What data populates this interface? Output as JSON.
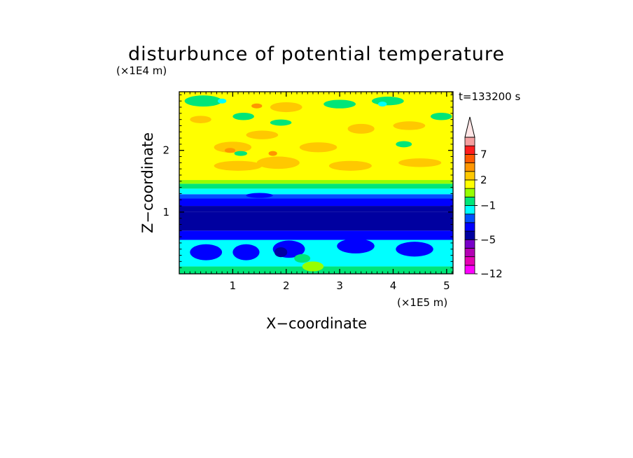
{
  "chart_data": {
    "type": "heatmap",
    "title": "disturbunce of potential temperature",
    "xlabel": "X−coordinate",
    "ylabel": "Z−coordinate",
    "x_scale_label": "(×1E5 m)",
    "y_scale_label": "(×1E4 m)",
    "time_label": "t=133200 s",
    "xlim": [
      0,
      5.12
    ],
    "ylim": [
      0,
      2.95
    ],
    "x_ticks": [
      1,
      2,
      3,
      4,
      5
    ],
    "x_tick_labels": [
      "1",
      "2",
      "3",
      "4",
      "5"
    ],
    "y_ticks": [
      1,
      2
    ],
    "y_tick_labels": [
      "1",
      "2"
    ],
    "colorbar": {
      "levels": [
        -12,
        -10,
        -8,
        -6,
        -5,
        -4,
        -3,
        -2,
        -1,
        0,
        1,
        2,
        3,
        5,
        7,
        9,
        11
      ],
      "tick_labels": [
        {
          "value": -12,
          "label": "−12"
        },
        {
          "value": -5,
          "label": "−5"
        },
        {
          "value": -1,
          "label": "−1"
        },
        {
          "value": 2,
          "label": "2"
        },
        {
          "value": 7,
          "label": "7"
        }
      ],
      "colors": [
        "#ff00ff",
        "#e600b4",
        "#b400b4",
        "#7800c8",
        "#0000a0",
        "#0000ff",
        "#0050ff",
        "#00ffff",
        "#00e678",
        "#96ff00",
        "#ffff00",
        "#ffc800",
        "#ff9600",
        "#ff5a00",
        "#ff1e1e",
        "#f5a0a0"
      ],
      "extend": "max",
      "extend_color": "#ffe6e6"
    },
    "bands": [
      {
        "z_from": 0.0,
        "z_to": 0.12,
        "value": 0,
        "color": "#00e678"
      },
      {
        "z_from": 0.12,
        "z_to": 0.55,
        "value": -2,
        "color": "#00ffff"
      },
      {
        "z_from": 0.55,
        "z_to": 0.7,
        "value": -4,
        "color": "#0000ff"
      },
      {
        "z_from": 0.7,
        "z_to": 1.0,
        "value": -5,
        "color": "#0000a0"
      },
      {
        "z_from": 1.0,
        "z_to": 1.1,
        "value": -5,
        "color": "#0000a0"
      },
      {
        "z_from": 1.1,
        "z_to": 1.22,
        "value": -4,
        "color": "#0000ff"
      },
      {
        "z_from": 1.22,
        "z_to": 1.29,
        "value": -3,
        "color": "#0050ff"
      },
      {
        "z_from": 1.29,
        "z_to": 1.38,
        "value": -2,
        "color": "#00ffff"
      },
      {
        "z_from": 1.38,
        "z_to": 1.46,
        "value": -1,
        "color": "#00e678"
      },
      {
        "z_from": 1.46,
        "z_to": 1.52,
        "value": 0,
        "color": "#96ff00"
      },
      {
        "z_from": 1.52,
        "z_to": 2.95,
        "value": 1,
        "color": "#ffff00"
      }
    ],
    "features": [
      {
        "kind": "warm",
        "x": 1.0,
        "z": 2.05,
        "rx": 0.35,
        "rz": 0.09,
        "color": "#ffc800"
      },
      {
        "kind": "warm",
        "x": 1.55,
        "z": 2.25,
        "rx": 0.3,
        "rz": 0.07,
        "color": "#ffc800"
      },
      {
        "kind": "warm",
        "x": 1.1,
        "z": 1.75,
        "rx": 0.45,
        "rz": 0.08,
        "color": "#ffc800"
      },
      {
        "kind": "warm",
        "x": 1.85,
        "z": 1.8,
        "rx": 0.4,
        "rz": 0.1,
        "color": "#ffc800"
      },
      {
        "kind": "warm",
        "x": 2.6,
        "z": 2.05,
        "rx": 0.35,
        "rz": 0.08,
        "color": "#ffc800"
      },
      {
        "kind": "warm",
        "x": 3.2,
        "z": 1.75,
        "rx": 0.4,
        "rz": 0.08,
        "color": "#ffc800"
      },
      {
        "kind": "warm",
        "x": 3.4,
        "z": 2.35,
        "rx": 0.25,
        "rz": 0.08,
        "color": "#ffc800"
      },
      {
        "kind": "warm",
        "x": 4.3,
        "z": 2.4,
        "rx": 0.3,
        "rz": 0.07,
        "color": "#ffc800"
      },
      {
        "kind": "warm",
        "x": 4.5,
        "z": 1.8,
        "rx": 0.4,
        "rz": 0.07,
        "color": "#ffc800"
      },
      {
        "kind": "warm",
        "x": 2.0,
        "z": 2.7,
        "rx": 0.3,
        "rz": 0.08,
        "color": "#ffc800"
      },
      {
        "kind": "warm",
        "x": 0.4,
        "z": 2.5,
        "rx": 0.2,
        "rz": 0.06,
        "color": "#ffc800"
      },
      {
        "kind": "warm",
        "x": 0.95,
        "z": 2.0,
        "rx": 0.1,
        "rz": 0.04,
        "color": "#ff9600"
      },
      {
        "kind": "warm",
        "x": 1.75,
        "z": 1.95,
        "rx": 0.08,
        "rz": 0.04,
        "color": "#ff9600"
      },
      {
        "kind": "warm",
        "x": 1.45,
        "z": 2.72,
        "rx": 0.1,
        "rz": 0.04,
        "color": "#ff9600"
      },
      {
        "kind": "cool",
        "x": 0.45,
        "z": 2.8,
        "rx": 0.35,
        "rz": 0.09,
        "color": "#00e678"
      },
      {
        "kind": "cool",
        "x": 1.2,
        "z": 2.55,
        "rx": 0.2,
        "rz": 0.06,
        "color": "#00e678"
      },
      {
        "kind": "cool",
        "x": 1.9,
        "z": 2.45,
        "rx": 0.2,
        "rz": 0.05,
        "color": "#00e678"
      },
      {
        "kind": "cool",
        "x": 3.0,
        "z": 2.75,
        "rx": 0.3,
        "rz": 0.07,
        "color": "#00e678"
      },
      {
        "kind": "cool",
        "x": 3.9,
        "z": 2.8,
        "rx": 0.3,
        "rz": 0.07,
        "color": "#00e678"
      },
      {
        "kind": "cool",
        "x": 4.9,
        "z": 2.55,
        "rx": 0.2,
        "rz": 0.06,
        "color": "#00e678"
      },
      {
        "kind": "cool",
        "x": 4.2,
        "z": 2.1,
        "rx": 0.15,
        "rz": 0.05,
        "color": "#00e678"
      },
      {
        "kind": "cool",
        "x": 1.15,
        "z": 1.95,
        "rx": 0.12,
        "rz": 0.04,
        "color": "#00e678"
      },
      {
        "kind": "cool",
        "x": 0.8,
        "z": 2.8,
        "rx": 0.08,
        "rz": 0.04,
        "color": "#00ffff"
      },
      {
        "kind": "cool",
        "x": 3.8,
        "z": 2.75,
        "rx": 0.08,
        "rz": 0.04,
        "color": "#00ffff"
      },
      {
        "kind": "cool",
        "x": 0.5,
        "z": 0.35,
        "rx": 0.3,
        "rz": 0.13,
        "color": "#0000ff"
      },
      {
        "kind": "cool",
        "x": 1.25,
        "z": 0.35,
        "rx": 0.25,
        "rz": 0.13,
        "color": "#0000ff"
      },
      {
        "kind": "cool",
        "x": 2.05,
        "z": 0.4,
        "rx": 0.3,
        "rz": 0.14,
        "color": "#0000ff"
      },
      {
        "kind": "cool",
        "x": 3.3,
        "z": 0.45,
        "rx": 0.35,
        "rz": 0.12,
        "color": "#0000ff"
      },
      {
        "kind": "cool",
        "x": 4.4,
        "z": 0.4,
        "rx": 0.35,
        "rz": 0.12,
        "color": "#0000ff"
      },
      {
        "kind": "cool",
        "x": 1.9,
        "z": 0.35,
        "rx": 0.12,
        "rz": 0.08,
        "color": "#0000a0"
      },
      {
        "kind": "cool",
        "x": 2.3,
        "z": 0.25,
        "rx": 0.15,
        "rz": 0.07,
        "color": "#00e678"
      },
      {
        "kind": "cool",
        "x": 2.5,
        "z": 0.12,
        "rx": 0.2,
        "rz": 0.08,
        "color": "#96ff00"
      },
      {
        "kind": "cool",
        "x": 1.5,
        "z": 1.27,
        "rx": 0.25,
        "rz": 0.04,
        "color": "#0000ff"
      }
    ]
  }
}
